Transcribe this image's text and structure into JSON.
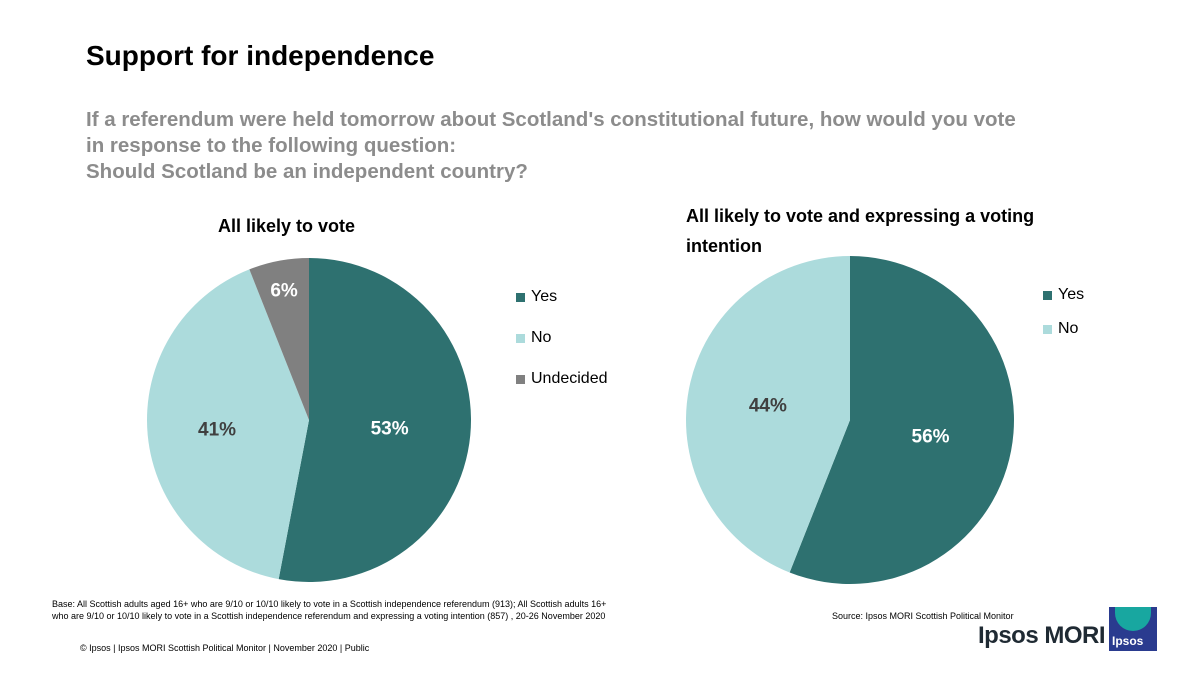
{
  "title": "Support for independence",
  "question": [
    "If a referendum were held tomorrow about Scotland's constitutional future, how would you vote",
    "in response to the following question:",
    "Should Scotland be an independent country?"
  ],
  "colors": {
    "yes": "#2e7170",
    "no": "#acdbdc",
    "undecided": "#808080"
  },
  "chart_data": [
    {
      "type": "pie",
      "title": "All likely to vote",
      "categories": [
        "Yes",
        "No",
        "Undecided"
      ],
      "values": [
        53,
        41,
        6
      ],
      "labels": [
        "53%",
        "41%",
        "6%"
      ],
      "legend": "right"
    },
    {
      "type": "pie",
      "title": "All likely to vote and expressing a voting intention",
      "categories": [
        "Yes",
        "No"
      ],
      "values": [
        56,
        44
      ],
      "labels": [
        "56%",
        "44%"
      ],
      "legend": "right"
    }
  ],
  "base_note": "Base: All Scottish adults aged 16+ who are 9/10 or 10/10 likely to vote in a Scottish independence referendum (913); All Scottish adults 16+ who are 9/10 or 10/10 likely to vote in a Scottish independence referendum and expressing a voting intention (857) , 20-26 November 2020",
  "source": "Source: Ipsos MORI Scottish Political Monitor",
  "footer": "© Ipsos | Ipsos MORI Scottish Political Monitor | November 2020 | Public",
  "logo": {
    "text": "Ipsos MORI",
    "badge": "Ipsos"
  }
}
